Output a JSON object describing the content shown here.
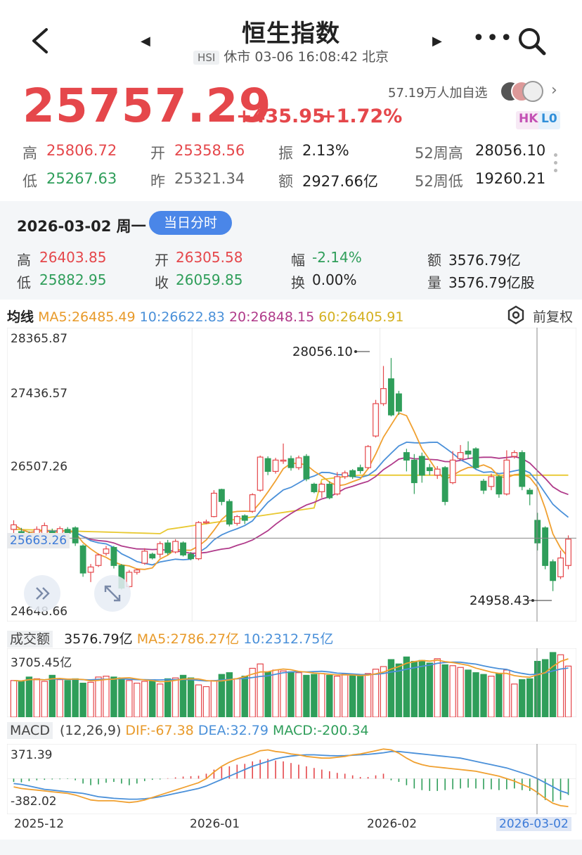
{
  "header": {
    "title": "恒生指数",
    "code_tag": "HSI",
    "status_line": "休市 03-06 16:08:42 北京",
    "prev_icon": "triangle-left-icon",
    "next_icon": "triangle-right-icon",
    "more_icon": "more-dots-icon",
    "search_icon": "search-icon",
    "back_icon": "back-chevron-icon"
  },
  "quote": {
    "price": "25757.29",
    "change": "+435.95",
    "change_pct": "+1.72%",
    "watchers": "57.19万人加自选",
    "badge_hk": "HK",
    "badge_l0": "L0"
  },
  "stats": {
    "high_label": "高",
    "high": "25806.72",
    "open_label": "开",
    "open": "25358.56",
    "amp_label": "振",
    "amp": "2.13%",
    "w52h_label": "52周高",
    "w52h": "28056.10",
    "low_label": "低",
    "low": "25267.63",
    "prev_label": "昨",
    "prev": "25321.34",
    "amt_label": "额",
    "amt": "2927.66亿",
    "w52l_label": "52周低",
    "w52l": "19260.21"
  },
  "day": {
    "date": "2026-03-02 周一",
    "button": "当日分时",
    "high_label": "高",
    "high": "26403.85",
    "open_label": "开",
    "open": "26305.58",
    "fu_label": "幅",
    "fu": "-2.14%",
    "amt_label": "额",
    "amt": "3576.79亿",
    "low_label": "低",
    "low": "25882.95",
    "close_label": "收",
    "close": "26059.85",
    "turn_label": "换",
    "turn": "0.00%",
    "vol_label": "量",
    "vol": "3576.79亿股"
  },
  "ma": {
    "label": "均线",
    "ma5": "MA5:26485.49",
    "ma10": "10:26622.83",
    "ma20": "20:26848.15",
    "ma60": "60:26405.91",
    "adjust": "前复权"
  },
  "axis": {
    "y1": "28365.87",
    "y2": "27436.57",
    "y3": "26507.26",
    "y5": "24648.66",
    "current": "25663.26",
    "hi_note": "28056.10",
    "lo_note": "24958.43"
  },
  "volume": {
    "label": "成交额",
    "value": "3576.79亿",
    "ma5": "MA5:2786.27亿",
    "ma10": "10:2312.75亿",
    "ymax": "3705.45亿"
  },
  "macd": {
    "label": "MACD",
    "params": "(12,26,9)",
    "dif": "DIF:-67.38",
    "dea": "DEA:32.79",
    "macd": "MACD:-200.34",
    "ymax": "371.39",
    "ymin": "-382.02"
  },
  "xaxis": {
    "t1": "2025-12",
    "t2": "2026-01",
    "t3": "2026-02",
    "t4": "2026-03-02"
  },
  "colors": {
    "up": "#e5474b",
    "down": "#2f9e5a",
    "ma5": "#f0a030",
    "ma10": "#4a90d9",
    "ma20": "#b03a8a",
    "ma60": "#e8c830"
  },
  "chart_data": {
    "type": "candlestick",
    "y_range": [
      24648.66,
      28365.87
    ],
    "candles": [
      [
        25780,
        25840,
        25700,
        25900
      ],
      [
        25750,
        25720,
        25650,
        25800
      ],
      [
        25700,
        25660,
        25600,
        25750
      ],
      [
        25640,
        25780,
        25620,
        25820
      ],
      [
        25700,
        25830,
        25680,
        25870
      ],
      [
        25750,
        25700,
        25650,
        25790
      ],
      [
        25720,
        25790,
        25700,
        25820
      ],
      [
        25780,
        25730,
        25690,
        25810
      ],
      [
        25800,
        25600,
        25560,
        25820
      ],
      [
        25560,
        25200,
        25150,
        25580
      ],
      [
        25210,
        25280,
        25080,
        25320
      ],
      [
        25300,
        25440,
        25280,
        25460
      ],
      [
        25460,
        25520,
        25430,
        25560
      ],
      [
        25540,
        25300,
        25260,
        25560
      ],
      [
        25300,
        25000,
        24980,
        25320
      ],
      [
        25020,
        25210,
        25000,
        25240
      ],
      [
        25210,
        25240,
        25180,
        25260
      ],
      [
        25330,
        25490,
        25310,
        25530
      ],
      [
        25450,
        25400,
        25380,
        25470
      ],
      [
        25450,
        25590,
        25400,
        25620
      ],
      [
        25600,
        25470,
        25440,
        25640
      ],
      [
        25480,
        25620,
        25460,
        25650
      ],
      [
        25600,
        25440,
        25420,
        25620
      ],
      [
        25450,
        25390,
        25370,
        25480
      ],
      [
        25390,
        25870,
        25370,
        25890
      ],
      [
        25870,
        25880,
        25850,
        25910
      ],
      [
        25950,
        26260,
        25940,
        26300
      ],
      [
        26310,
        26150,
        26100,
        26320
      ],
      [
        26150,
        25850,
        25820,
        26180
      ],
      [
        25860,
        25950,
        25830,
        25970
      ],
      [
        25960,
        25900,
        25850,
        25980
      ],
      [
        26020,
        26240,
        26000,
        26260
      ],
      [
        26300,
        26740,
        26280,
        26760
      ],
      [
        26720,
        26550,
        26500,
        26750
      ],
      [
        26550,
        26700,
        26520,
        26730
      ],
      [
        26700,
        26700,
        26650,
        26920
      ],
      [
        26720,
        26600,
        26560,
        26760
      ],
      [
        26600,
        26730,
        26570,
        26760
      ],
      [
        26750,
        26450,
        26420,
        26780
      ],
      [
        26380,
        26280,
        26260,
        26400
      ],
      [
        26280,
        26380,
        26200,
        26400
      ],
      [
        26380,
        26200,
        26180,
        26420
      ],
      [
        26250,
        26480,
        26230,
        26540
      ],
      [
        26480,
        26530,
        26450,
        26560
      ],
      [
        26560,
        26480,
        26450,
        26580
      ],
      [
        26600,
        26560,
        26520,
        26640
      ],
      [
        26600,
        26880,
        26580,
        26900
      ],
      [
        27020,
        27450,
        27000,
        27500
      ],
      [
        27450,
        27650,
        27420,
        27950
      ],
      [
        27780,
        27300,
        27280,
        28056
      ],
      [
        27580,
        27350,
        27300,
        27620
      ],
      [
        26800,
        26700,
        26550,
        26850
      ],
      [
        26700,
        26400,
        26250,
        26780
      ],
      [
        26750,
        26500,
        26400,
        26800
      ],
      [
        26600,
        26560,
        26500,
        26650
      ],
      [
        26500,
        26580,
        26450,
        26620
      ],
      [
        26600,
        26150,
        26100,
        26620
      ],
      [
        26400,
        26700,
        26380,
        26820
      ],
      [
        26720,
        26800,
        26700,
        26900
      ],
      [
        26820,
        26780,
        26720,
        26950
      ],
      [
        26850,
        26600,
        26580,
        26870
      ],
      [
        26420,
        26300,
        26250,
        26450
      ],
      [
        26350,
        26480,
        26300,
        26520
      ],
      [
        26480,
        26250,
        26200,
        26500
      ],
      [
        26250,
        26700,
        26230,
        26830
      ],
      [
        26750,
        26800,
        26720,
        26830
      ],
      [
        26800,
        26350,
        26300,
        26830
      ],
      [
        26300,
        26250,
        26100,
        26330
      ],
      [
        25900,
        25600,
        25500,
        26000
      ],
      [
        25800,
        25300,
        25250,
        25820
      ],
      [
        25350,
        25100,
        24960,
        25380
      ],
      [
        25150,
        25400,
        25120,
        25500
      ],
      [
        25300,
        25650,
        25250,
        25700
      ]
    ],
    "volume_values": [
      2100,
      2050,
      2300,
      2200,
      2050,
      2400,
      2150,
      2100,
      2200,
      1950,
      2000,
      2300,
      2350,
      2300,
      2250,
      2100,
      1950,
      2050,
      2150,
      1900,
      2200,
      2250,
      2400,
      2250,
      1850,
      1750,
      2100,
      2450,
      2550,
      2200,
      2350,
      2800,
      3050,
      2600,
      2700,
      2650,
      2600,
      2550,
      2400,
      2450,
      2500,
      2400,
      2350,
      2450,
      2400,
      2350,
      2500,
      2750,
      2900,
      3300,
      3050,
      3450,
      3200,
      3250,
      3100,
      3350,
      3000,
      2950,
      2850,
      2700,
      2550,
      2450,
      2350,
      2500,
      2700,
      1900,
      2150,
      2200,
      3200,
      3300,
      3705,
      3576,
      2927
    ],
    "volume_up": [
      1,
      0,
      0,
      1,
      1,
      0,
      1,
      0,
      0,
      0,
      1,
      1,
      1,
      0,
      0,
      1,
      1,
      1,
      0,
      1,
      0,
      1,
      0,
      0,
      1,
      1,
      1,
      0,
      0,
      1,
      0,
      1,
      1,
      0,
      1,
      1,
      0,
      1,
      0,
      0,
      1,
      0,
      1,
      1,
      0,
      0,
      1,
      1,
      1,
      0,
      0,
      0,
      0,
      0,
      0,
      1,
      0,
      1,
      1,
      0,
      0,
      0,
      1,
      0,
      1,
      1,
      0,
      0,
      0,
      0,
      0,
      1,
      1
    ],
    "macd_hist": [
      -40,
      -45,
      -30,
      -20,
      -15,
      -10,
      -8,
      -5,
      -20,
      -60,
      -80,
      -70,
      -50,
      -40,
      -60,
      -80,
      -60,
      -30,
      -15,
      -10,
      5,
      15,
      25,
      30,
      35,
      60,
      110,
      140,
      150,
      170,
      180,
      210,
      230,
      240,
      220,
      210,
      190,
      170,
      150,
      130,
      110,
      90,
      70,
      60,
      40,
      20,
      20,
      40,
      60,
      -20,
      -40,
      -80,
      -120,
      -140,
      -150,
      -150,
      -140,
      -130,
      -120,
      -110,
      -120,
      -130,
      -130,
      -140,
      -130,
      -120,
      -140,
      -150,
      -200,
      -260,
      -280,
      -260,
      -200
    ],
    "dif": [
      -100,
      -120,
      -130,
      -140,
      -150,
      -160,
      -170,
      -180,
      -200,
      -230,
      -260,
      -270,
      -270,
      -270,
      -280,
      -290,
      -280,
      -260,
      -230,
      -200,
      -170,
      -140,
      -110,
      -80,
      -50,
      0,
      80,
      150,
      200,
      240,
      270,
      300,
      340,
      350,
      330,
      320,
      300,
      290,
      270,
      260,
      250,
      250,
      260,
      270,
      290,
      300,
      320,
      340,
      360,
      350,
      310,
      250,
      200,
      170,
      150,
      140,
      130,
      120,
      110,
      100,
      90,
      70,
      50,
      30,
      0,
      -30,
      -70,
      -110,
      -170,
      -240,
      -300,
      -330,
      -340
    ],
    "dea": [
      -60,
      -70,
      -90,
      -110,
      -130,
      -140,
      -150,
      -160,
      -170,
      -180,
      -200,
      -220,
      -230,
      -240,
      -245,
      -250,
      -250,
      -245,
      -235,
      -220,
      -200,
      -180,
      -160,
      -140,
      -120,
      -90,
      -50,
      -10,
      30,
      70,
      110,
      150,
      180,
      210,
      240,
      260,
      275,
      285,
      290,
      290,
      285,
      280,
      278,
      280,
      285,
      290,
      295,
      305,
      315,
      330,
      330,
      320,
      310,
      300,
      290,
      280,
      270,
      260,
      250,
      230,
      210,
      190,
      170,
      150,
      130,
      100,
      70,
      40,
      0,
      -50,
      -100,
      -150,
      -180
    ]
  }
}
